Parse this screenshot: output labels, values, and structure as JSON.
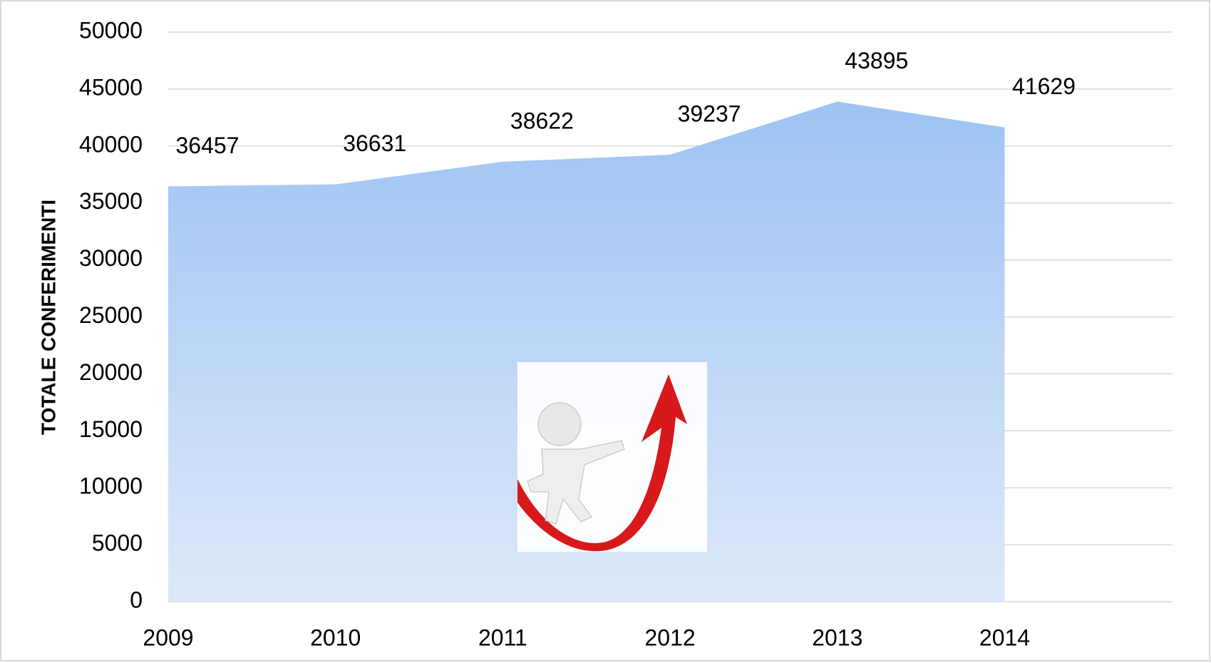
{
  "chart_data": {
    "type": "area",
    "y_label": "TOTALE CONFERIMENTI",
    "categories": [
      "2009",
      "2010",
      "2011",
      "2012",
      "2013",
      "2014"
    ],
    "values": [
      36457,
      36631,
      38622,
      39237,
      43895,
      41629
    ],
    "color_top": "#9dc3f3",
    "color_bottom": "#dde9f9",
    "ylim": [
      0,
      50000
    ],
    "yticks": [
      0,
      5000,
      10000,
      15000,
      20000,
      25000,
      30000,
      35000,
      40000,
      45000,
      50000
    ],
    "grid": true,
    "data_labels": true
  }
}
